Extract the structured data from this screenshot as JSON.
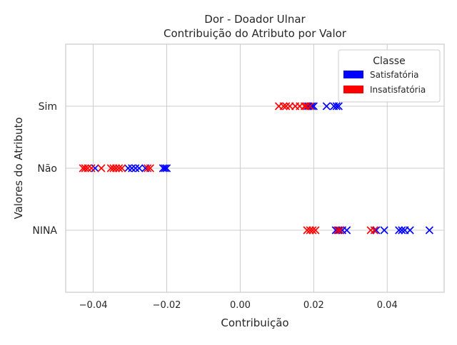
{
  "chart_data": {
    "type": "scatter",
    "title": "Dor - Doador Ulnar",
    "subtitle": "Contribuição do Atributo por Valor",
    "xlabel": "Contribuição",
    "ylabel": "Valores do Atributo",
    "xlim": [
      -0.0475,
      0.0555
    ],
    "x_ticks": [
      -0.04,
      -0.02,
      0.0,
      0.02,
      0.04
    ],
    "x_tick_labels": [
      "−0.04",
      "−0.02",
      "0.00",
      "0.02",
      "0.04"
    ],
    "categories": [
      "NINA",
      "Não",
      "Sim"
    ],
    "grid": true,
    "marker": "x",
    "legend": {
      "title": "Classe",
      "placement": "top-right",
      "entries": [
        {
          "name": "Satisfatória",
          "color": "#0000ff"
        },
        {
          "name": "Insatisfatória",
          "color": "#ff0000"
        }
      ]
    },
    "series": [
      {
        "name": "Satisfatória",
        "color": "#0000ff",
        "points": [
          {
            "y": "Sim",
            "x": 0.0195
          },
          {
            "y": "Sim",
            "x": 0.02
          },
          {
            "y": "Sim",
            "x": 0.0235
          },
          {
            "y": "Sim",
            "x": 0.0255
          },
          {
            "y": "Sim",
            "x": 0.0262
          },
          {
            "y": "Sim",
            "x": 0.0268
          },
          {
            "y": "Sim",
            "x": 0.0185
          },
          {
            "y": "Não",
            "x": -0.0305
          },
          {
            "y": "Não",
            "x": -0.0295
          },
          {
            "y": "Não",
            "x": -0.0285
          },
          {
            "y": "Não",
            "x": -0.0275
          },
          {
            "y": "Não",
            "x": -0.0258
          },
          {
            "y": "Não",
            "x": -0.021
          },
          {
            "y": "Não",
            "x": -0.0205
          },
          {
            "y": "Não",
            "x": -0.02
          },
          {
            "y": "Não",
            "x": -0.0395
          },
          {
            "y": "NINA",
            "x": 0.026
          },
          {
            "y": "NINA",
            "x": 0.0268
          },
          {
            "y": "NINA",
            "x": 0.0278
          },
          {
            "y": "NINA",
            "x": 0.029
          },
          {
            "y": "NINA",
            "x": 0.037
          },
          {
            "y": "NINA",
            "x": 0.0392
          },
          {
            "y": "NINA",
            "x": 0.0432
          },
          {
            "y": "NINA",
            "x": 0.044
          },
          {
            "y": "NINA",
            "x": 0.0448
          },
          {
            "y": "NINA",
            "x": 0.0462
          },
          {
            "y": "NINA",
            "x": 0.0515
          }
        ]
      },
      {
        "name": "Insatisfatória",
        "color": "#ff0000",
        "points": [
          {
            "y": "Sim",
            "x": 0.0105
          },
          {
            "y": "Sim",
            "x": 0.0118
          },
          {
            "y": "Sim",
            "x": 0.0125
          },
          {
            "y": "Sim",
            "x": 0.0135
          },
          {
            "y": "Sim",
            "x": 0.015
          },
          {
            "y": "Sim",
            "x": 0.0162
          },
          {
            "y": "Sim",
            "x": 0.0175
          },
          {
            "y": "Sim",
            "x": 0.018
          },
          {
            "y": "Sim",
            "x": 0.019
          },
          {
            "y": "Não",
            "x": -0.0428
          },
          {
            "y": "Não",
            "x": -0.0422
          },
          {
            "y": "Não",
            "x": -0.0415
          },
          {
            "y": "Não",
            "x": -0.0405
          },
          {
            "y": "Não",
            "x": -0.0378
          },
          {
            "y": "Não",
            "x": -0.0352
          },
          {
            "y": "Não",
            "x": -0.0345
          },
          {
            "y": "Não",
            "x": -0.0338
          },
          {
            "y": "Não",
            "x": -0.033
          },
          {
            "y": "Não",
            "x": -0.0322
          },
          {
            "y": "Não",
            "x": -0.0252
          },
          {
            "y": "Não",
            "x": -0.0245
          },
          {
            "y": "NINA",
            "x": 0.0182
          },
          {
            "y": "NINA",
            "x": 0.019
          },
          {
            "y": "NINA",
            "x": 0.0197
          },
          {
            "y": "NINA",
            "x": 0.0205
          },
          {
            "y": "NINA",
            "x": 0.0265
          },
          {
            "y": "NINA",
            "x": 0.0272
          },
          {
            "y": "NINA",
            "x": 0.0355
          },
          {
            "y": "NINA",
            "x": 0.0365
          }
        ]
      }
    ]
  }
}
